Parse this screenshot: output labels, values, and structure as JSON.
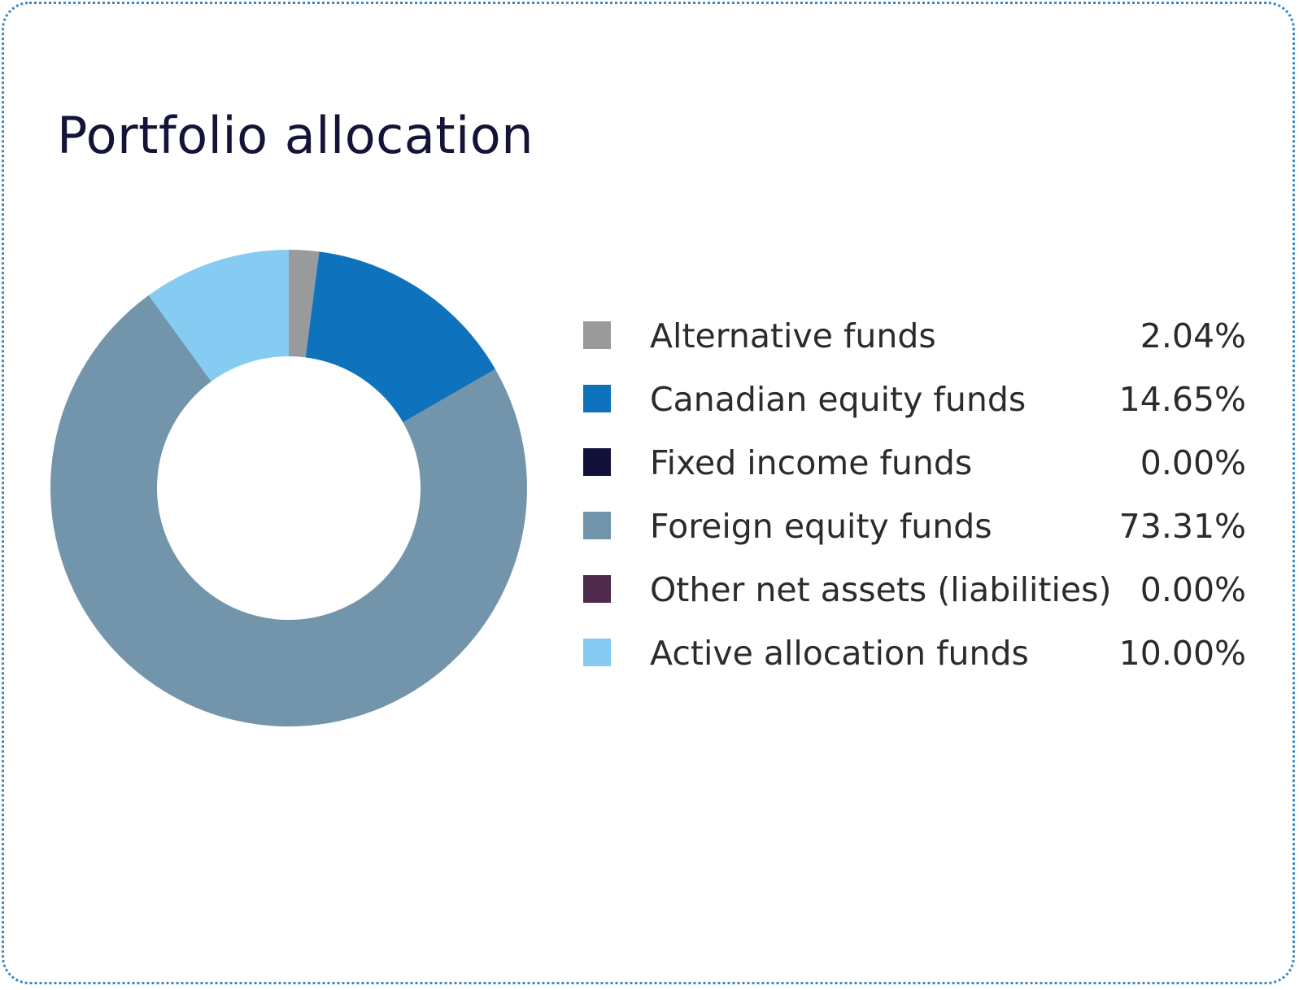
{
  "title": "Portfolio allocation",
  "chart_data": {
    "type": "pie",
    "variant": "donut",
    "title": "Portfolio allocation",
    "legend_position": "right",
    "categories": [
      "Alternative funds",
      "Canadian equity funds",
      "Fixed income funds",
      "Foreign equity funds",
      "Other net assets (liabilities)",
      "Active allocation funds"
    ],
    "values": [
      2.04,
      14.65,
      0.0,
      73.31,
      0.0,
      10.0
    ],
    "value_labels": [
      "2.04%",
      "14.65%",
      "0.00%",
      "73.31%",
      "0.00%",
      "10.00%"
    ],
    "colors": [
      "#999a9c",
      "#0e72bd",
      "#12113a",
      "#7295ab",
      "#4f2a4a",
      "#86cbf2"
    ]
  }
}
